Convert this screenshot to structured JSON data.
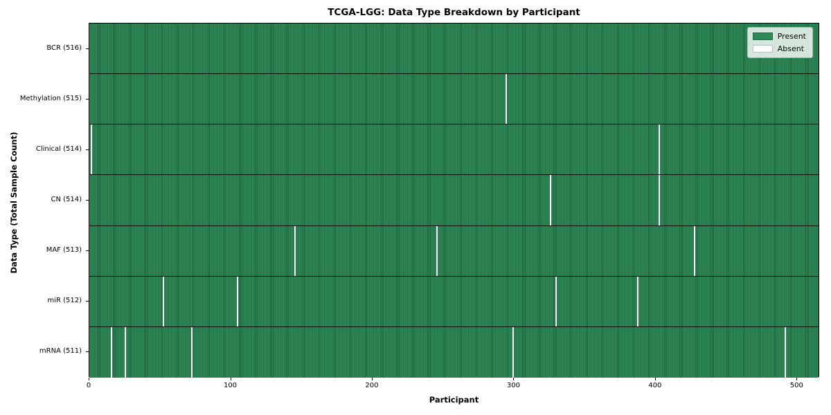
{
  "figure": {
    "background": "#ffffff"
  },
  "chart_data": {
    "type": "heatmap",
    "title": "TCGA-LGG: Data Type Breakdown by Participant",
    "xlabel": "Participant",
    "ylabel": "Data Type (Total Sample Count)",
    "n_participants": 516,
    "x_range": [
      0,
      516
    ],
    "x_ticks": [
      0,
      100,
      200,
      300,
      400,
      500
    ],
    "grid": false,
    "legend_position": "upper right",
    "colors": {
      "present_fill": "#2e8b57",
      "present_edge": "#1e5e3c",
      "absent_fill": "#ffffff",
      "row_divider": "#0d0d0d"
    },
    "legend": [
      {
        "label": "Present",
        "color": "#2e8b57"
      },
      {
        "label": "Absent",
        "color": "#ffffff"
      }
    ],
    "rows": [
      {
        "label": "BCR (516)",
        "data_type": "BCR",
        "present_count": 516,
        "absent_participants": []
      },
      {
        "label": "Methylation (515)",
        "data_type": "Methylation",
        "present_count": 515,
        "absent_participants": [
          294
        ]
      },
      {
        "label": "Clinical (514)",
        "data_type": "Clinical",
        "present_count": 514,
        "absent_participants": [
          1,
          402
        ]
      },
      {
        "label": "CN (514)",
        "data_type": "CN",
        "present_count": 514,
        "absent_participants": [
          325,
          402
        ]
      },
      {
        "label": "MAF (513)",
        "data_type": "MAF",
        "present_count": 513,
        "absent_participants": [
          145,
          245,
          427
        ]
      },
      {
        "label": "miR (512)",
        "data_type": "miR",
        "present_count": 512,
        "absent_participants": [
          52,
          104,
          329,
          387
        ]
      },
      {
        "label": "mRNA (511)",
        "data_type": "mRNA",
        "present_count": 511,
        "absent_participants": [
          15,
          25,
          72,
          299,
          491
        ]
      }
    ]
  }
}
